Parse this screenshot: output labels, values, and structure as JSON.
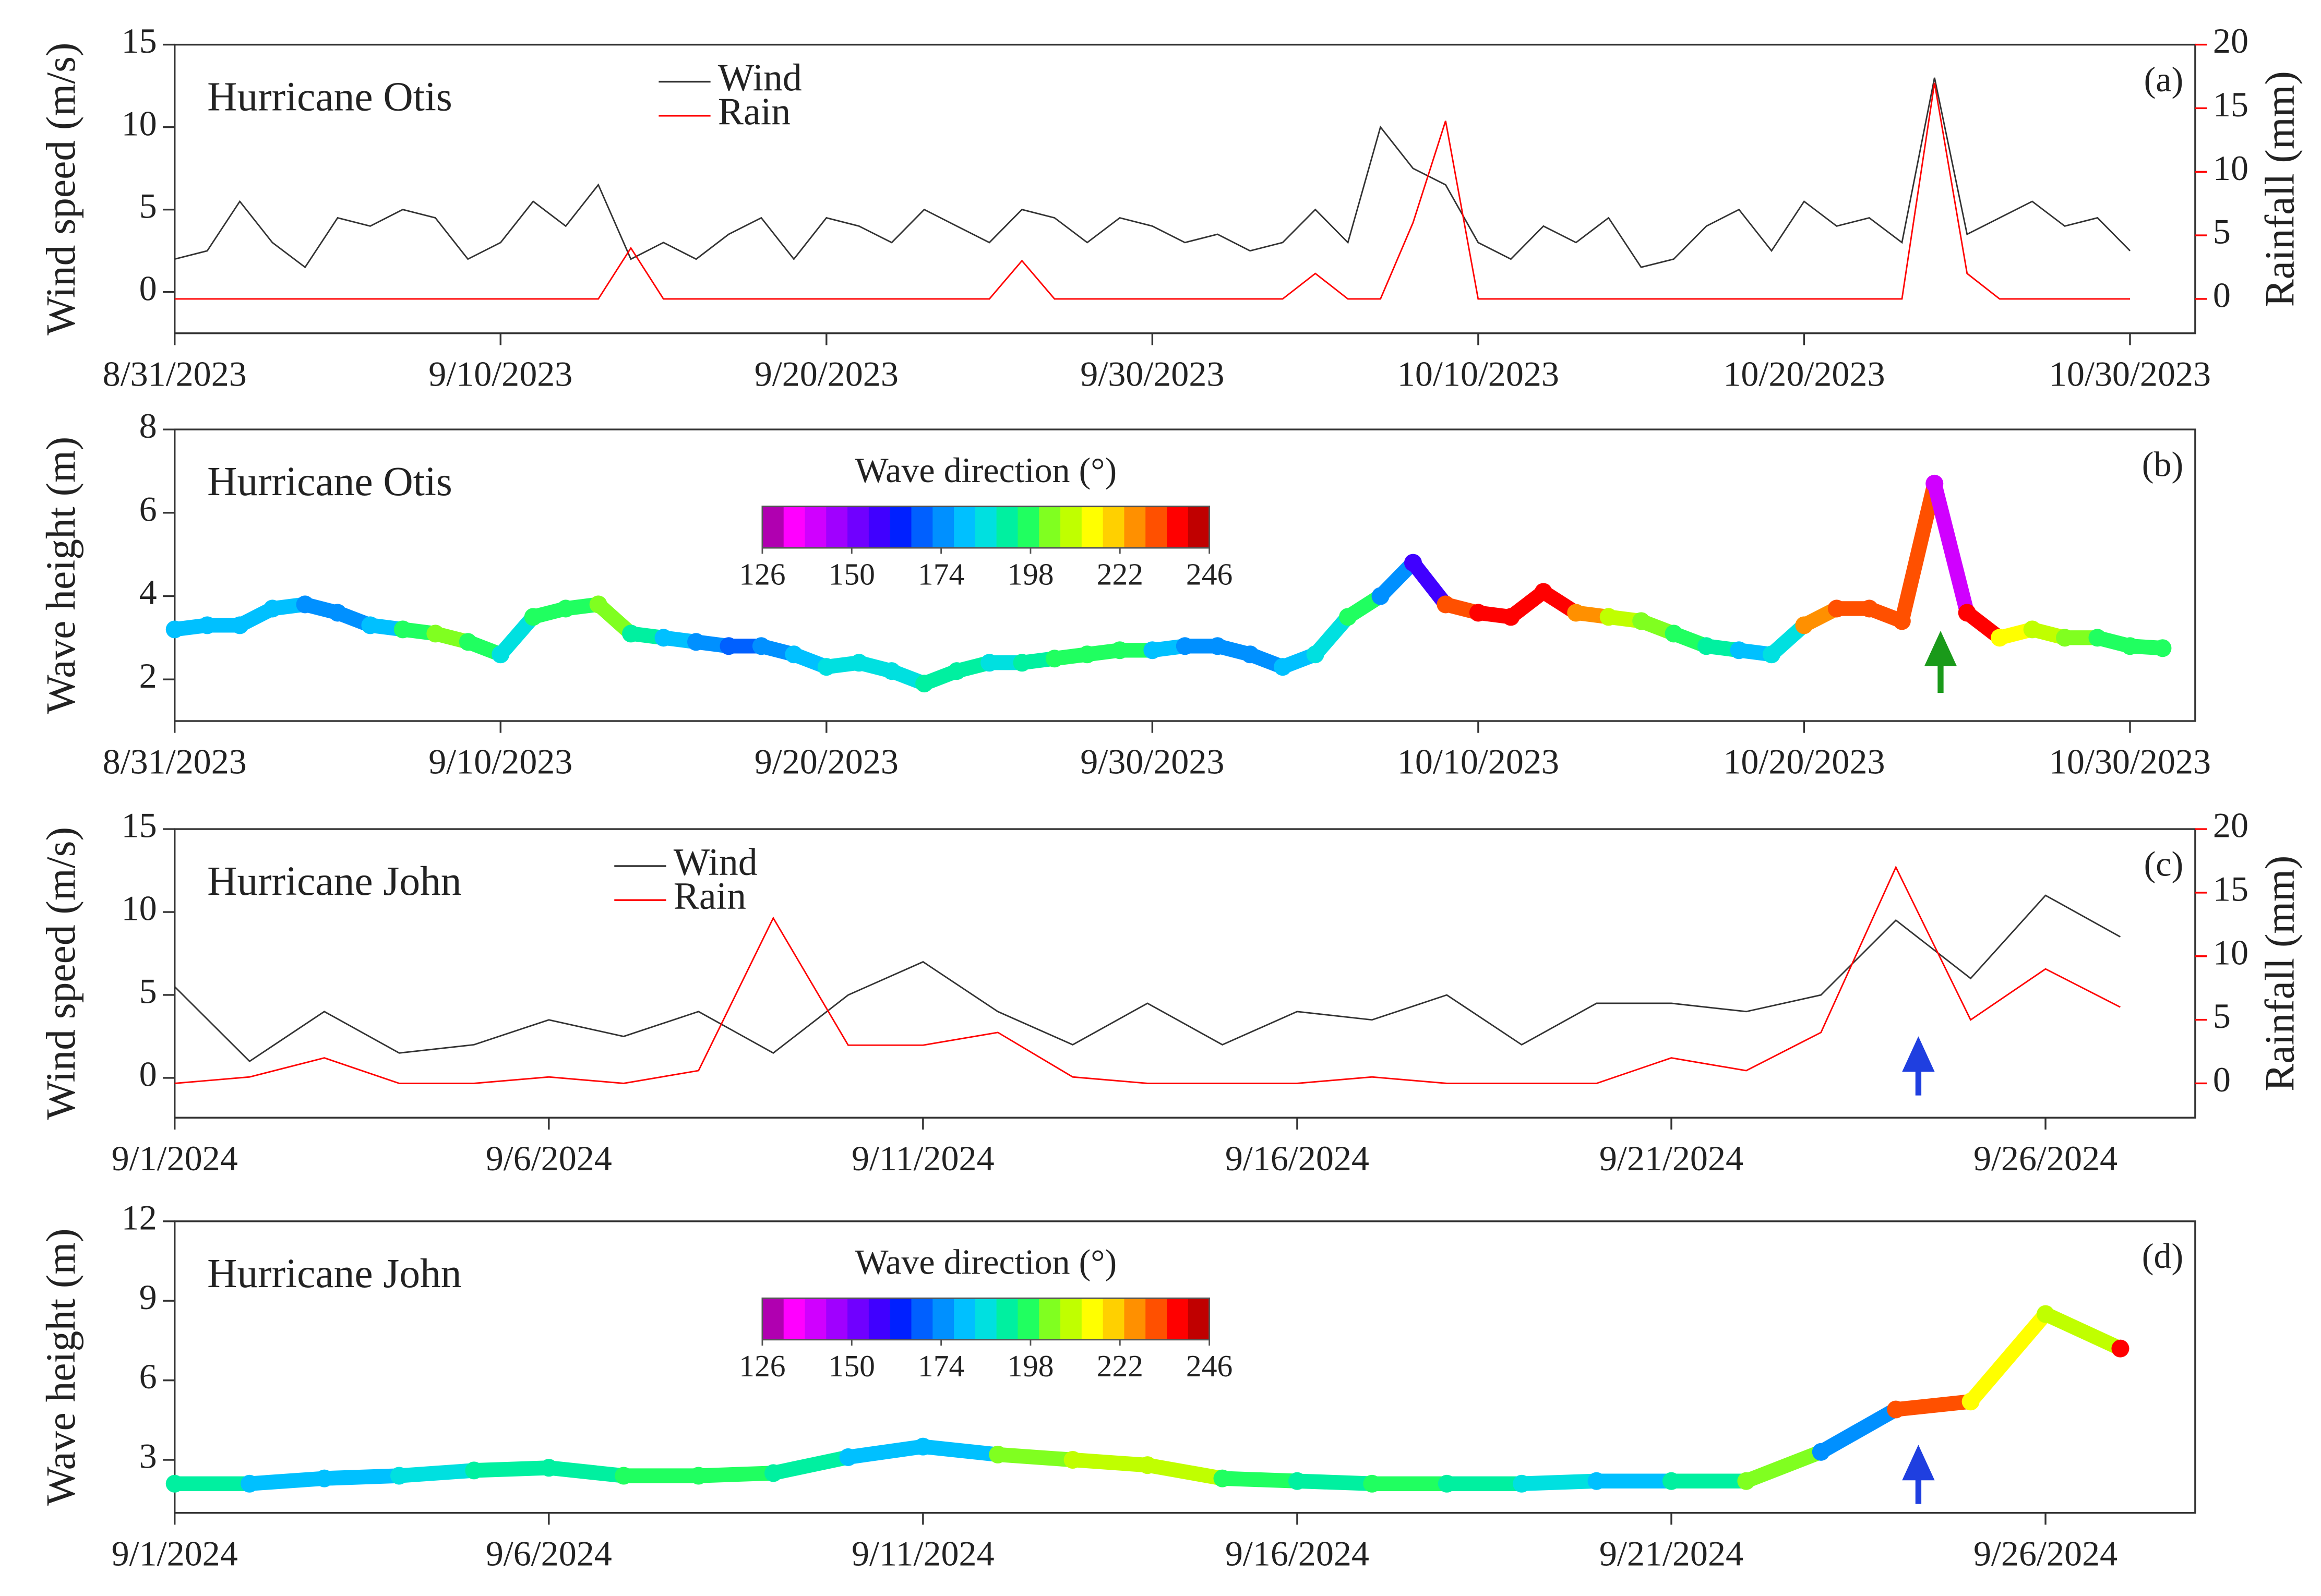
{
  "chart_data": [
    {
      "type": "line",
      "title": "Hurricane Otis",
      "panel_label": "(a)",
      "ylabel": "Wind speed (m/s)",
      "y2label": "Rainfall (mm)",
      "x": [
        "2023-08-31",
        "2023-09-01",
        "2023-09-02",
        "2023-09-03",
        "2023-09-04",
        "2023-09-05",
        "2023-09-06",
        "2023-09-07",
        "2023-09-08",
        "2023-09-09",
        "2023-09-10",
        "2023-09-11",
        "2023-09-12",
        "2023-09-13",
        "2023-09-14",
        "2023-09-15",
        "2023-09-16",
        "2023-09-17",
        "2023-09-18",
        "2023-09-19",
        "2023-09-20",
        "2023-09-21",
        "2023-09-22",
        "2023-09-23",
        "2023-09-24",
        "2023-09-25",
        "2023-09-26",
        "2023-09-27",
        "2023-09-28",
        "2023-09-29",
        "2023-09-30",
        "2023-10-01",
        "2023-10-02",
        "2023-10-03",
        "2023-10-04",
        "2023-10-05",
        "2023-10-06",
        "2023-10-07",
        "2023-10-08",
        "2023-10-09",
        "2023-10-10",
        "2023-10-11",
        "2023-10-12",
        "2023-10-13",
        "2023-10-14",
        "2023-10-15",
        "2023-10-16",
        "2023-10-17",
        "2023-10-18",
        "2023-10-19",
        "2023-10-20",
        "2023-10-21",
        "2023-10-22",
        "2023-10-23",
        "2023-10-24",
        "2023-10-25",
        "2023-10-26",
        "2023-10-27",
        "2023-10-28",
        "2023-10-29",
        "2023-10-30"
      ],
      "series": [
        {
          "name": "Wind",
          "color": "#333333",
          "values": [
            2,
            2.5,
            5.5,
            3,
            1.5,
            4.5,
            4,
            5,
            4.5,
            2,
            3,
            5.5,
            4,
            6.5,
            2,
            3,
            2,
            3.5,
            4.5,
            2,
            4.5,
            4,
            3,
            5,
            4,
            3,
            5,
            4.5,
            3,
            4.5,
            4,
            3,
            3.5,
            2.5,
            3,
            5,
            3,
            10,
            7.5,
            6.5,
            3,
            2,
            4,
            3,
            4.5,
            1.5,
            2,
            4,
            5,
            2.5,
            5.5,
            4,
            4.5,
            3,
            13,
            3.5,
            4.5,
            5.5,
            4,
            4.5,
            2.5
          ]
        },
        {
          "name": "Rain",
          "color": "#ff0000",
          "axis": "y2",
          "values": [
            0,
            0,
            0,
            0,
            0,
            0,
            0,
            0,
            0,
            0,
            0,
            0,
            0,
            0,
            4,
            0,
            0,
            0,
            0,
            0,
            0,
            0,
            0,
            0,
            0,
            0,
            3,
            0,
            0,
            0,
            0,
            0,
            0,
            0,
            0,
            2,
            0,
            0,
            6,
            14,
            0,
            0,
            0,
            0,
            0,
            0,
            0,
            0,
            0,
            0,
            0,
            0,
            0,
            0,
            17,
            2,
            0,
            0,
            0,
            0,
            0
          ]
        }
      ],
      "xlim": [
        "2023-08-31",
        "2023-11-01"
      ],
      "xticks": [
        {
          "value": "2023-08-31",
          "label": "8/31/2023"
        },
        {
          "value": "2023-09-10",
          "label": "9/10/2023"
        },
        {
          "value": "2023-09-20",
          "label": "9/20/2023"
        },
        {
          "value": "2023-09-30",
          "label": "9/30/2023"
        },
        {
          "value": "2023-10-10",
          "label": "10/10/2023"
        },
        {
          "value": "2023-10-20",
          "label": "10/20/2023"
        },
        {
          "value": "2023-10-30",
          "label": "10/30/2023"
        }
      ],
      "ylim": [
        -2.5,
        15
      ],
      "yticks": [
        0,
        5,
        10,
        15
      ],
      "y2lim": [
        -2.7,
        20
      ],
      "y2ticks": [
        0,
        5,
        10,
        15,
        20
      ]
    },
    {
      "type": "scatter",
      "title": "Hurricane Otis",
      "panel_label": "(b)",
      "ylabel": "Wave height (m)",
      "x": [
        "2023-08-31",
        "2023-09-01",
        "2023-09-02",
        "2023-09-03",
        "2023-09-04",
        "2023-09-05",
        "2023-09-06",
        "2023-09-07",
        "2023-09-08",
        "2023-09-09",
        "2023-09-10",
        "2023-09-11",
        "2023-09-12",
        "2023-09-13",
        "2023-09-14",
        "2023-09-15",
        "2023-09-16",
        "2023-09-17",
        "2023-09-18",
        "2023-09-19",
        "2023-09-20",
        "2023-09-21",
        "2023-09-22",
        "2023-09-23",
        "2023-09-24",
        "2023-09-25",
        "2023-09-26",
        "2023-09-27",
        "2023-09-28",
        "2023-09-29",
        "2023-09-30",
        "2023-10-01",
        "2023-10-02",
        "2023-10-03",
        "2023-10-04",
        "2023-10-05",
        "2023-10-06",
        "2023-10-07",
        "2023-10-08",
        "2023-10-09",
        "2023-10-10",
        "2023-10-11",
        "2023-10-12",
        "2023-10-13",
        "2023-10-14",
        "2023-10-15",
        "2023-10-16",
        "2023-10-17",
        "2023-10-18",
        "2023-10-19",
        "2023-10-20",
        "2023-10-21",
        "2023-10-22",
        "2023-10-23",
        "2023-10-24",
        "2023-10-25",
        "2023-10-26",
        "2023-10-27",
        "2023-10-28",
        "2023-10-29",
        "2023-10-30",
        "2023-10-31"
      ],
      "values": [
        3.2,
        3.3,
        3.3,
        3.7,
        3.8,
        3.6,
        3.3,
        3.2,
        3.1,
        2.9,
        2.6,
        3.5,
        3.7,
        3.8,
        3.1,
        3.0,
        2.9,
        2.8,
        2.8,
        2.6,
        2.3,
        2.4,
        2.2,
        1.9,
        2.2,
        2.4,
        2.4,
        2.5,
        2.6,
        2.7,
        2.7,
        2.8,
        2.8,
        2.6,
        2.3,
        2.6,
        3.5,
        4.0,
        4.8,
        3.8,
        3.6,
        3.5,
        4.1,
        3.6,
        3.5,
        3.4,
        3.1,
        2.8,
        2.7,
        2.6,
        3.3,
        3.7,
        3.7,
        3.4,
        6.7,
        3.6,
        3.0,
        3.2,
        3.0,
        3.0,
        2.8,
        2.75
      ],
      "color_values": [
        180,
        182,
        180,
        178,
        176,
        175,
        180,
        200,
        205,
        195,
        185,
        195,
        195,
        205,
        190,
        180,
        175,
        170,
        172,
        180,
        185,
        185,
        188,
        190,
        192,
        185,
        190,
        195,
        198,
        200,
        180,
        175,
        172,
        175,
        180,
        185,
        195,
        175,
        160,
        230,
        235,
        238,
        240,
        225,
        210,
        205,
        200,
        190,
        180,
        185,
        225,
        230,
        232,
        232,
        140,
        240,
        215,
        210,
        205,
        200,
        200,
        200
      ],
      "colorbar": {
        "label": "Wave direction (°)",
        "lim": [
          126,
          246
        ],
        "ticks": [
          126,
          150,
          174,
          198,
          222,
          246
        ],
        "colors": [
          "#b000b0",
          "#ff00ff",
          "#d000ff",
          "#a000ff",
          "#7000ff",
          "#4000ff",
          "#0020ff",
          "#0060ff",
          "#0090ff",
          "#00c0ff",
          "#00e0e0",
          "#00f0a0",
          "#20ff60",
          "#80ff20",
          "#c0ff00",
          "#ffff00",
          "#ffd000",
          "#ff9000",
          "#ff5000",
          "#ff0000",
          "#c00000"
        ]
      },
      "xlim": [
        "2023-08-31",
        "2023-11-01"
      ],
      "xticks": [
        {
          "value": "2023-08-31",
          "label": "8/31/2023"
        },
        {
          "value": "2023-09-10",
          "label": "9/10/2023"
        },
        {
          "value": "2023-09-20",
          "label": "9/20/2023"
        },
        {
          "value": "2023-09-30",
          "label": "9/30/2023"
        },
        {
          "value": "2023-10-10",
          "label": "10/10/2023"
        },
        {
          "value": "2023-10-20",
          "label": "10/20/2023"
        },
        {
          "value": "2023-10-30",
          "label": "10/30/2023"
        }
      ],
      "ylim": [
        1,
        8
      ],
      "yticks": [
        2,
        4,
        6,
        8
      ]
    },
    {
      "type": "line",
      "title": "Hurricane John",
      "panel_label": "(c)",
      "ylabel": "Wind speed (m/s)",
      "y2label": "Rainfall (mm)",
      "x": [
        "2024-09-01",
        "2024-09-02",
        "2024-09-03",
        "2024-09-04",
        "2024-09-05",
        "2024-09-06",
        "2024-09-07",
        "2024-09-08",
        "2024-09-09",
        "2024-09-10",
        "2024-09-11",
        "2024-09-12",
        "2024-09-13",
        "2024-09-14",
        "2024-09-15",
        "2024-09-16",
        "2024-09-17",
        "2024-09-18",
        "2024-09-19",
        "2024-09-20",
        "2024-09-21",
        "2024-09-22",
        "2024-09-23",
        "2024-09-24",
        "2024-09-25",
        "2024-09-26",
        "2024-09-27"
      ],
      "series": [
        {
          "name": "Wind",
          "color": "#333333",
          "values": [
            5.5,
            1,
            4,
            1.5,
            2,
            3.5,
            2.5,
            4,
            1.5,
            5,
            7,
            4,
            2,
            4.5,
            2,
            4,
            3.5,
            5,
            2,
            4.5,
            4.5,
            4,
            5,
            9.5,
            6,
            11,
            8.5
          ]
        },
        {
          "name": "Rain",
          "color": "#ff0000",
          "axis": "y2",
          "values": [
            0,
            0.5,
            2,
            0,
            0,
            0.5,
            0,
            1,
            13,
            3,
            3,
            4,
            0.5,
            0,
            0,
            0,
            0.5,
            0,
            0,
            0,
            2,
            1,
            4,
            17,
            5,
            9,
            6
          ]
        }
      ],
      "xlim": [
        "2024-09-01",
        "2024-09-28"
      ],
      "xticks": [
        {
          "value": "2024-09-01",
          "label": "9/1/2024"
        },
        {
          "value": "2024-09-06",
          "label": "9/6/2024"
        },
        {
          "value": "2024-09-11",
          "label": "9/11/2024"
        },
        {
          "value": "2024-09-16",
          "label": "9/16/2024"
        },
        {
          "value": "2024-09-21",
          "label": "9/21/2024"
        },
        {
          "value": "2024-09-26",
          "label": "9/26/2024"
        }
      ],
      "ylim": [
        -2.4,
        15
      ],
      "yticks": [
        0,
        5,
        10,
        15
      ],
      "y2lim": [
        -2.7,
        20
      ],
      "y2ticks": [
        0,
        5,
        10,
        15,
        20
      ]
    },
    {
      "type": "scatter",
      "title": "Hurricane John",
      "panel_label": "(d)",
      "ylabel": "Wave height (m)",
      "x": [
        "2024-09-01",
        "2024-09-02",
        "2024-09-03",
        "2024-09-04",
        "2024-09-05",
        "2024-09-06",
        "2024-09-07",
        "2024-09-08",
        "2024-09-09",
        "2024-09-10",
        "2024-09-11",
        "2024-09-12",
        "2024-09-13",
        "2024-09-14",
        "2024-09-15",
        "2024-09-16",
        "2024-09-17",
        "2024-09-18",
        "2024-09-19",
        "2024-09-20",
        "2024-09-21",
        "2024-09-22",
        "2024-09-23",
        "2024-09-24",
        "2024-09-25",
        "2024-09-26",
        "2024-09-27"
      ],
      "values": [
        2.1,
        2.1,
        2.3,
        2.4,
        2.6,
        2.7,
        2.4,
        2.4,
        2.5,
        3.1,
        3.5,
        3.2,
        3.0,
        2.8,
        2.3,
        2.2,
        2.1,
        2.1,
        2.1,
        2.2,
        2.2,
        2.2,
        3.3,
        4.9,
        5.2,
        8.5,
        7.2
      ],
      "color_values": [
        190,
        180,
        180,
        185,
        192,
        190,
        195,
        195,
        192,
        180,
        178,
        205,
        208,
        210,
        195,
        192,
        195,
        190,
        185,
        180,
        190,
        205,
        175,
        230,
        215,
        210,
        235
      ],
      "colorbar": {
        "label": "Wave direction (°)",
        "lim": [
          126,
          246
        ],
        "ticks": [
          126,
          150,
          174,
          198,
          222,
          246
        ],
        "colors": [
          "#b000b0",
          "#ff00ff",
          "#d000ff",
          "#a000ff",
          "#7000ff",
          "#4000ff",
          "#0020ff",
          "#0060ff",
          "#0090ff",
          "#00c0ff",
          "#00e0e0",
          "#00f0a0",
          "#20ff60",
          "#80ff20",
          "#c0ff00",
          "#ffff00",
          "#ffd000",
          "#ff9000",
          "#ff5000",
          "#ff0000",
          "#c00000"
        ]
      },
      "xlim": [
        "2024-09-01",
        "2024-09-28"
      ],
      "xticks": [
        {
          "value": "2024-09-01",
          "label": "9/1/2024"
        },
        {
          "value": "2024-09-06",
          "label": "9/6/2024"
        },
        {
          "value": "2024-09-11",
          "label": "9/11/2024"
        },
        {
          "value": "2024-09-16",
          "label": "9/16/2024"
        },
        {
          "value": "2024-09-21",
          "label": "9/21/2024"
        },
        {
          "value": "2024-09-26",
          "label": "9/26/2024"
        }
      ],
      "ylim": [
        1,
        12
      ],
      "yticks": [
        3,
        6,
        9,
        12
      ]
    }
  ]
}
